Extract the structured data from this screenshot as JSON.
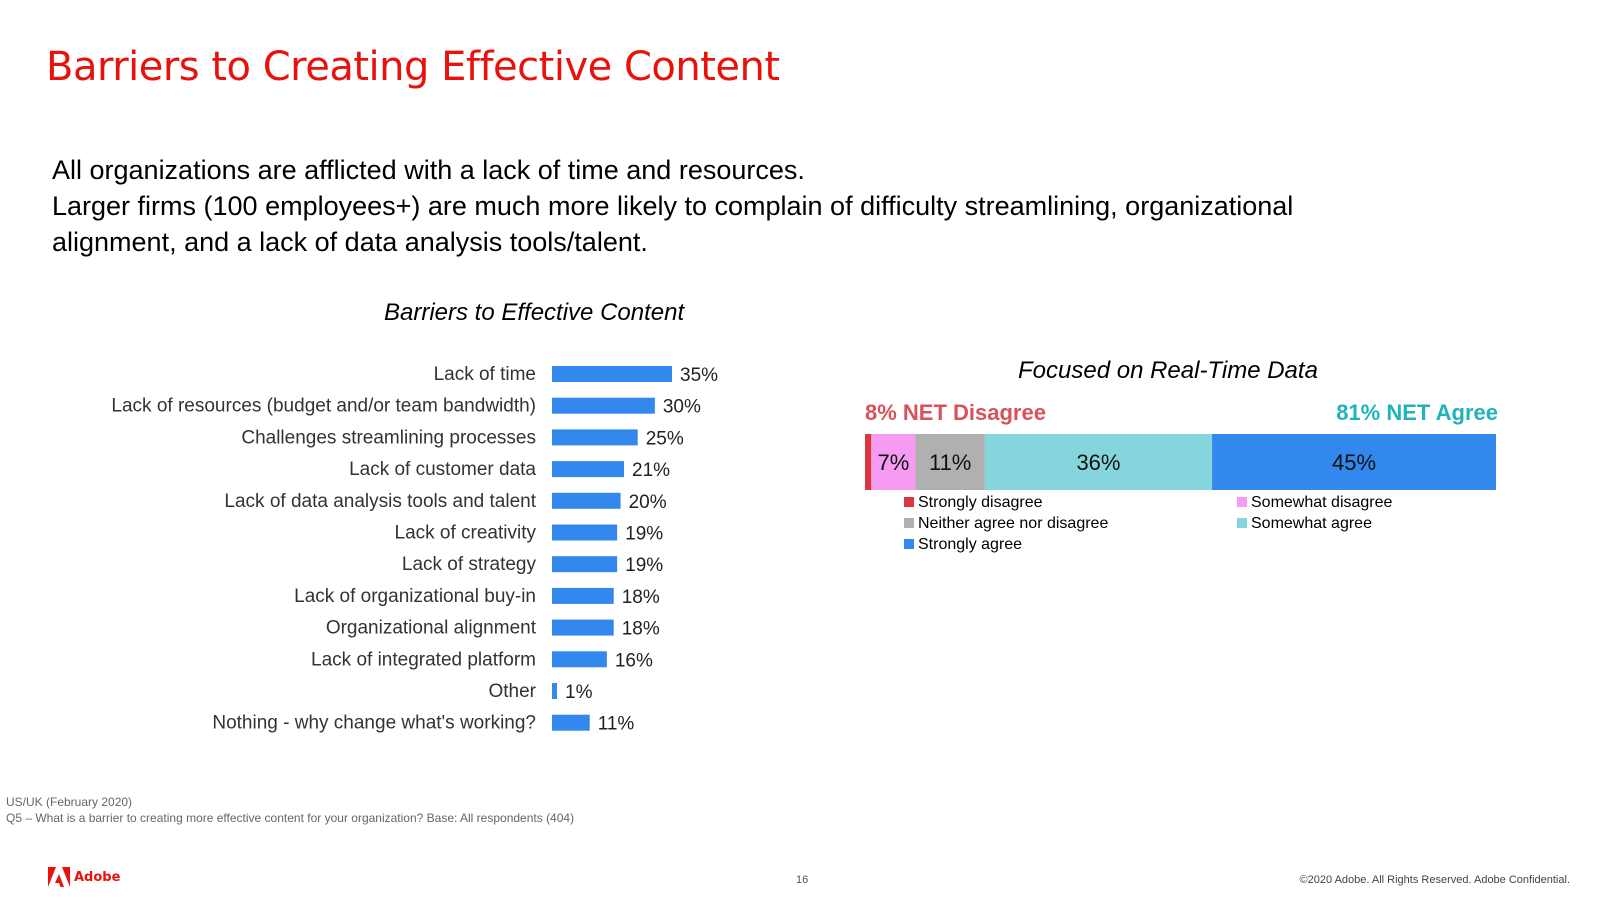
{
  "slide": {
    "title": "Barriers to Creating Effective Content",
    "summary": [
      "All organizations are afflicted with a lack of time and resources.",
      "Larger firms (100 employees+) are much more likely to complain of difficulty streamlining, organizational",
      "alignment, and a lack of data analysis tools/talent."
    ]
  },
  "colors": {
    "title_red": "#e8120c",
    "bar_blue": "#3388ee",
    "strongly_disagree": "#d9363e",
    "somewhat_disagree": "#f59cf2",
    "neither": "#b0b0b0",
    "somewhat_agree": "#85d6dc",
    "strongly_agree": "#3388ee",
    "net_disagree": "#d9525a",
    "net_agree": "#20b3b9"
  },
  "chart_data": [
    {
      "type": "bar",
      "orientation": "horizontal",
      "title": "Barriers to Effective Content",
      "categories": [
        "Lack of time",
        "Lack of resources (budget and/or team bandwidth)",
        "Challenges streamlining processes",
        "Lack of customer data",
        "Lack of data analysis tools and talent",
        "Lack of creativity",
        "Lack of strategy",
        "Lack of organizational buy-in",
        "Organizational alignment",
        "Lack of integrated platform",
        "Other",
        "Nothing - why change what's working?"
      ],
      "values": [
        35,
        30,
        25,
        21,
        20,
        19,
        19,
        18,
        18,
        16,
        1,
        11
      ],
      "value_labels": [
        "35%",
        "30%",
        "25%",
        "21%",
        "20%",
        "19%",
        "19%",
        "18%",
        "18%",
        "16%",
        "1%",
        "11%"
      ],
      "unit": "%",
      "xlim": [
        0,
        35
      ],
      "grid": false
    },
    {
      "type": "bar",
      "orientation": "horizontal",
      "stacked": true,
      "title": "Focused on Real-Time Data",
      "net_disagree_label": "8% NET Disagree",
      "net_agree_label": "81% NET Agree",
      "series": [
        {
          "name": "Strongly disagree",
          "value": 1,
          "label": ""
        },
        {
          "name": "Somewhat disagree",
          "value": 7,
          "label": "7%"
        },
        {
          "name": "Neither agree nor disagree",
          "value": 11,
          "label": "11%"
        },
        {
          "name": "Somewhat agree",
          "value": 36,
          "label": "36%"
        },
        {
          "name": "Strongly agree",
          "value": 45,
          "label": "45%"
        }
      ],
      "legend_placement": "bottom",
      "grid": false
    }
  ],
  "footnote": {
    "line1": "US/UK (February 2020)",
    "line2": "Q5 – What is a barrier to creating more effective content for your organization? Base: All respondents (404)"
  },
  "footer": {
    "logo_text": "Adobe",
    "page_number": "16",
    "copyright": "©2020 Adobe. All Rights Reserved. Adobe Confidential."
  }
}
